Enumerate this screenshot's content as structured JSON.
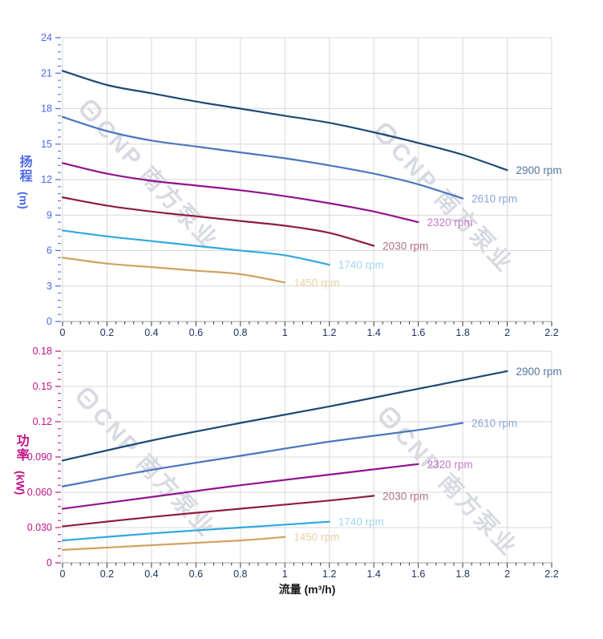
{
  "watermark": {
    "text": "CNP 南方泵业"
  },
  "axis_titles": {
    "flow": "流量 (m³/h)",
    "head_cn": "扬程",
    "head_unit": "(m)",
    "power_cn": "功率",
    "power_unit": "(kW)"
  },
  "style": {
    "grid_color": "#d9d9d9",
    "axis_line_color": "#a3a3a3",
    "x_tick_color": "#3a3a3a",
    "x_tick_label_color": "#1d3563",
    "head_axis_color": "#4a66ec",
    "power_axis_color": "#c11384"
  },
  "chart_data": [
    {
      "type": "line",
      "title": "扬程-流量曲线",
      "xlabel": "流量 (m³/h)",
      "ylabel": "扬程 (m)",
      "xlim": [
        0,
        2.2
      ],
      "ylim": [
        0,
        24
      ],
      "grid": true,
      "legend_position": "end-of-curve",
      "x_major_ticks": [
        "0",
        "0.2",
        "0.4",
        "0.6",
        "0.8",
        "1",
        "1.2",
        "1.4",
        "1.6",
        "1.8",
        "2",
        "2.2"
      ],
      "y_major_ticks": [
        "0",
        "3",
        "6",
        "9",
        "12",
        "15",
        "18",
        "21",
        "24"
      ],
      "x_minor_step": 0.04,
      "y_minor_step": 0.6,
      "series": [
        {
          "name": "2900 rpm",
          "color": "#1c4a74",
          "label_color": "#54759e",
          "points": [
            [
              0,
              21.2
            ],
            [
              0.2,
              20.0
            ],
            [
              0.4,
              19.3
            ],
            [
              0.6,
              18.6
            ],
            [
              0.8,
              18.0
            ],
            [
              1.0,
              17.4
            ],
            [
              1.2,
              16.8
            ],
            [
              1.4,
              16.0
            ],
            [
              1.6,
              15.1
            ],
            [
              1.8,
              14.1
            ],
            [
              2.0,
              12.8
            ]
          ]
        },
        {
          "name": "2610 rpm",
          "color": "#4b76bf",
          "label_color": "#8ba4d9",
          "points": [
            [
              0,
              17.3
            ],
            [
              0.2,
              16.1
            ],
            [
              0.4,
              15.3
            ],
            [
              0.6,
              14.8
            ],
            [
              0.8,
              14.3
            ],
            [
              1.0,
              13.8
            ],
            [
              1.2,
              13.2
            ],
            [
              1.4,
              12.5
            ],
            [
              1.6,
              11.6
            ],
            [
              1.8,
              10.4
            ]
          ]
        },
        {
          "name": "2320 rpm",
          "color": "#92128e",
          "label_color": "#c678c9",
          "points": [
            [
              0,
              13.4
            ],
            [
              0.2,
              12.5
            ],
            [
              0.4,
              11.9
            ],
            [
              0.6,
              11.5
            ],
            [
              0.8,
              11.1
            ],
            [
              1.0,
              10.6
            ],
            [
              1.2,
              10.0
            ],
            [
              1.4,
              9.3
            ],
            [
              1.6,
              8.4
            ]
          ]
        },
        {
          "name": "2030 rpm",
          "color": "#8e1c3c",
          "label_color": "#b06f85",
          "points": [
            [
              0,
              10.5
            ],
            [
              0.2,
              9.8
            ],
            [
              0.4,
              9.3
            ],
            [
              0.6,
              8.9
            ],
            [
              0.8,
              8.5
            ],
            [
              1.0,
              8.1
            ],
            [
              1.2,
              7.5
            ],
            [
              1.4,
              6.4
            ]
          ]
        },
        {
          "name": "1740 rpm",
          "color": "#30a9e0",
          "label_color": "#a2d6f2",
          "points": [
            [
              0,
              7.7
            ],
            [
              0.2,
              7.2
            ],
            [
              0.4,
              6.8
            ],
            [
              0.6,
              6.4
            ],
            [
              0.8,
              6.0
            ],
            [
              1.0,
              5.6
            ],
            [
              1.2,
              4.8
            ]
          ]
        },
        {
          "name": "1450 rpm",
          "color": "#d2a162",
          "label_color": "#e9d0a6",
          "points": [
            [
              0,
              5.4
            ],
            [
              0.2,
              4.9
            ],
            [
              0.4,
              4.6
            ],
            [
              0.6,
              4.3
            ],
            [
              0.8,
              4.0
            ],
            [
              1.0,
              3.3
            ]
          ]
        }
      ]
    },
    {
      "type": "line",
      "title": "功率-流量曲线",
      "xlabel": "流量 (m³/h)",
      "ylabel": "功率 (kW)",
      "xlim": [
        0,
        2.2
      ],
      "ylim": [
        0,
        0.18
      ],
      "grid": true,
      "legend_position": "end-of-curve",
      "x_major_ticks": [
        "0",
        "0.2",
        "0.4",
        "0.6",
        "0.8",
        "1",
        "1.2",
        "1.4",
        "1.6",
        "1.8",
        "2",
        "2.2"
      ],
      "y_major_ticks": [
        "0",
        "0.030",
        "0.060",
        "0.090",
        "0.12",
        "0.15",
        "0.18"
      ],
      "x_minor_step": 0.04,
      "y_minor_step": 0.006,
      "series": [
        {
          "name": "2900 rpm",
          "color": "#1c4a74",
          "label_color": "#54759e",
          "points": [
            [
              0,
              0.087
            ],
            [
              0.4,
              0.104
            ],
            [
              0.8,
              0.119
            ],
            [
              1.2,
              0.133
            ],
            [
              1.6,
              0.148
            ],
            [
              2.0,
              0.163
            ]
          ]
        },
        {
          "name": "2610 rpm",
          "color": "#4b76bf",
          "label_color": "#8ba4d9",
          "points": [
            [
              0,
              0.065
            ],
            [
              0.4,
              0.079
            ],
            [
              0.8,
              0.091
            ],
            [
              1.2,
              0.103
            ],
            [
              1.6,
              0.113
            ],
            [
              1.8,
              0.119
            ]
          ]
        },
        {
          "name": "2320 rpm",
          "color": "#92128e",
          "label_color": "#c678c9",
          "points": [
            [
              0,
              0.046
            ],
            [
              0.4,
              0.056
            ],
            [
              0.8,
              0.066
            ],
            [
              1.2,
              0.075
            ],
            [
              1.6,
              0.084
            ]
          ]
        },
        {
          "name": "2030 rpm",
          "color": "#8e1c3c",
          "label_color": "#b06f85",
          "points": [
            [
              0,
              0.031
            ],
            [
              0.4,
              0.039
            ],
            [
              0.8,
              0.046
            ],
            [
              1.2,
              0.053
            ],
            [
              1.4,
              0.057
            ]
          ]
        },
        {
          "name": "1740 rpm",
          "color": "#30a9e0",
          "label_color": "#a2d6f2",
          "points": [
            [
              0,
              0.019
            ],
            [
              0.4,
              0.025
            ],
            [
              0.8,
              0.03
            ],
            [
              1.2,
              0.035
            ]
          ]
        },
        {
          "name": "1450 rpm",
          "color": "#d2a162",
          "label_color": "#e9d0a6",
          "points": [
            [
              0,
              0.011
            ],
            [
              0.4,
              0.015
            ],
            [
              0.8,
              0.019
            ],
            [
              1.0,
              0.022
            ]
          ]
        }
      ]
    }
  ]
}
